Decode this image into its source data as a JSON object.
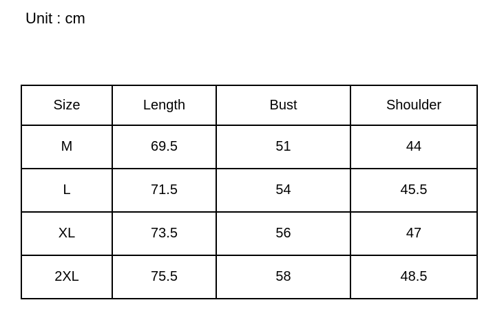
{
  "unit_label": "Unit : cm",
  "colors": {
    "background": "#ffffff",
    "text": "#000000",
    "table_border": "#000000"
  },
  "chart_data": {
    "type": "table",
    "title": "Unit : cm",
    "columns": [
      "Size",
      "Length",
      "Bust",
      "Shoulder"
    ],
    "rows": [
      [
        "M",
        "69.5",
        "51",
        "44"
      ],
      [
        "L",
        "71.5",
        "54",
        "45.5"
      ],
      [
        "XL",
        "73.5",
        "56",
        "47"
      ],
      [
        "2XL",
        "75.5",
        "58",
        "48.5"
      ]
    ],
    "layout_hints": {
      "header_row": true,
      "all_cells_centered": true,
      "grid": "full black borders"
    }
  }
}
